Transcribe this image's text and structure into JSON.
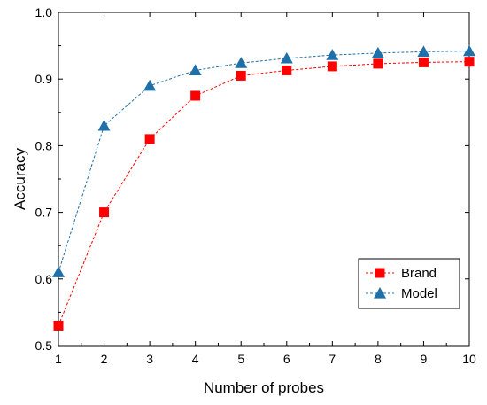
{
  "chart_data": {
    "type": "line",
    "title": "",
    "xlabel": "Number of probes",
    "ylabel": "Accuracy",
    "x": [
      1,
      2,
      3,
      4,
      5,
      6,
      7,
      8,
      9,
      10
    ],
    "xlim": [
      1,
      10
    ],
    "ylim": [
      0.5,
      1.0
    ],
    "xticks": [
      "1",
      "2",
      "3",
      "4",
      "5",
      "6",
      "7",
      "8",
      "9",
      "10"
    ],
    "yticks": [
      "0.5",
      "0.6",
      "0.7",
      "0.8",
      "0.9",
      "1.0"
    ],
    "legend_position": "bottom-right",
    "grid": false,
    "series": [
      {
        "name": "Brand",
        "color": "#ff0000",
        "marker": "square",
        "line_style": "dashed",
        "values": [
          0.53,
          0.7,
          0.81,
          0.875,
          0.905,
          0.913,
          0.919,
          0.923,
          0.925,
          0.926
        ]
      },
      {
        "name": "Model",
        "color": "#1f6fa8",
        "marker": "triangle",
        "line_style": "dashed",
        "values": [
          0.61,
          0.83,
          0.89,
          0.913,
          0.924,
          0.931,
          0.936,
          0.939,
          0.941,
          0.942
        ]
      }
    ]
  }
}
